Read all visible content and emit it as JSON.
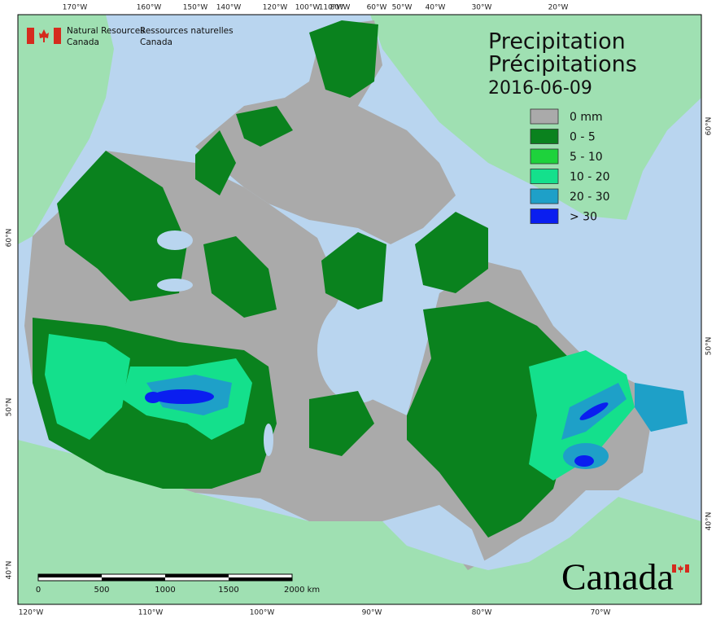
{
  "header": {
    "department_en": [
      "Natural Resources",
      "Canada"
    ],
    "department_fr": [
      "Ressources naturelles",
      "Canada"
    ]
  },
  "title": [
    "Precipitation",
    "Précipitations"
  ],
  "date": "2016-06-09",
  "legend": [
    {
      "label": "0 mm",
      "color": "#aaaaaa"
    },
    {
      "label": "0 - 5",
      "color": "#0a821e"
    },
    {
      "label": "5 - 10",
      "color": "#1ed23c"
    },
    {
      "label": "10 - 20",
      "color": "#14e08c"
    },
    {
      "label": "20 - 30",
      "color": "#1ea0c8"
    },
    {
      "label": "> 30",
      "color": "#0a1ef0"
    }
  ],
  "graticule": {
    "top": [
      "170°W",
      "160°W",
      "150°W",
      "140°W",
      "120°W",
      "100°W",
      "110°W",
      "80°W",
      "60°W",
      "50°W",
      "40°W",
      "30°W",
      "20°W"
    ],
    "bottom": [
      "120°W",
      "110°W",
      "100°W",
      "90°W",
      "80°W",
      "70°W"
    ],
    "left": [
      "60°N",
      "50°N",
      "40°N"
    ],
    "right": [
      "60°N",
      "50°N",
      "40°N"
    ]
  },
  "scale_bar": [
    "0",
    "500",
    "1000",
    "1500",
    "2000  km"
  ],
  "wordmark": "Canada"
}
